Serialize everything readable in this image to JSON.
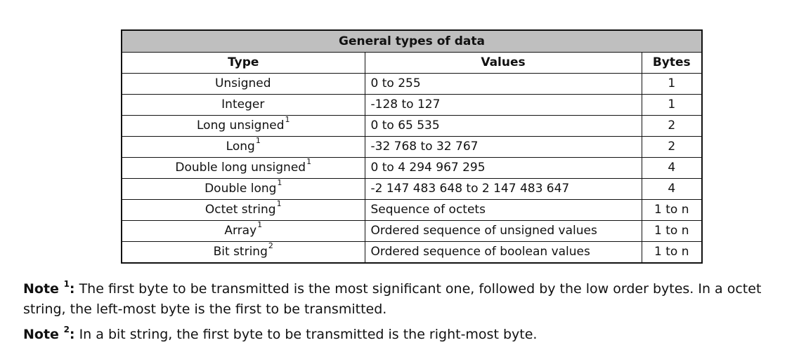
{
  "table": {
    "title": "General types of data",
    "headers": {
      "type": "Type",
      "values": "Values",
      "bytes": "Bytes"
    },
    "rows": [
      {
        "type": "Unsigned",
        "note": "",
        "values": "0 to 255",
        "bytes": "1"
      },
      {
        "type": "Integer",
        "note": "",
        "values": "-128 to 127",
        "bytes": "1"
      },
      {
        "type": "Long unsigned",
        "note": "1",
        "values": "0 to 65 535",
        "bytes": "2"
      },
      {
        "type": "Long",
        "note": "1",
        "values": "-32 768 to 32 767",
        "bytes": "2"
      },
      {
        "type": "Double long unsigned",
        "note": "1",
        "values": "0 to 4 294 967 295",
        "bytes": "4"
      },
      {
        "type": "Double long",
        "note": "1",
        "values": "-2 147 483 648 to 2 147 483 647",
        "bytes": "4"
      },
      {
        "type": "Octet string",
        "note": "1",
        "values": "Sequence of octets",
        "bytes": "1 to n"
      },
      {
        "type": "Array",
        "note": "1",
        "values": "Ordered sequence of unsigned values",
        "bytes": "1 to n"
      },
      {
        "type": "Bit string",
        "note": "2",
        "values": "Ordered sequence of boolean values",
        "bytes": "1 to n"
      }
    ]
  },
  "notes": [
    {
      "label": "Note",
      "number": "1",
      "label_suffix": ":",
      "text": " The first byte to be transmitted is the most significant one, followed by the low order bytes. In a octet string, the left-most byte is the first to be transmitted."
    },
    {
      "label": "Note",
      "number": "2",
      "label_suffix": ":",
      "text": " In a bit string, the first byte to be transmitted is the right-most byte."
    }
  ]
}
